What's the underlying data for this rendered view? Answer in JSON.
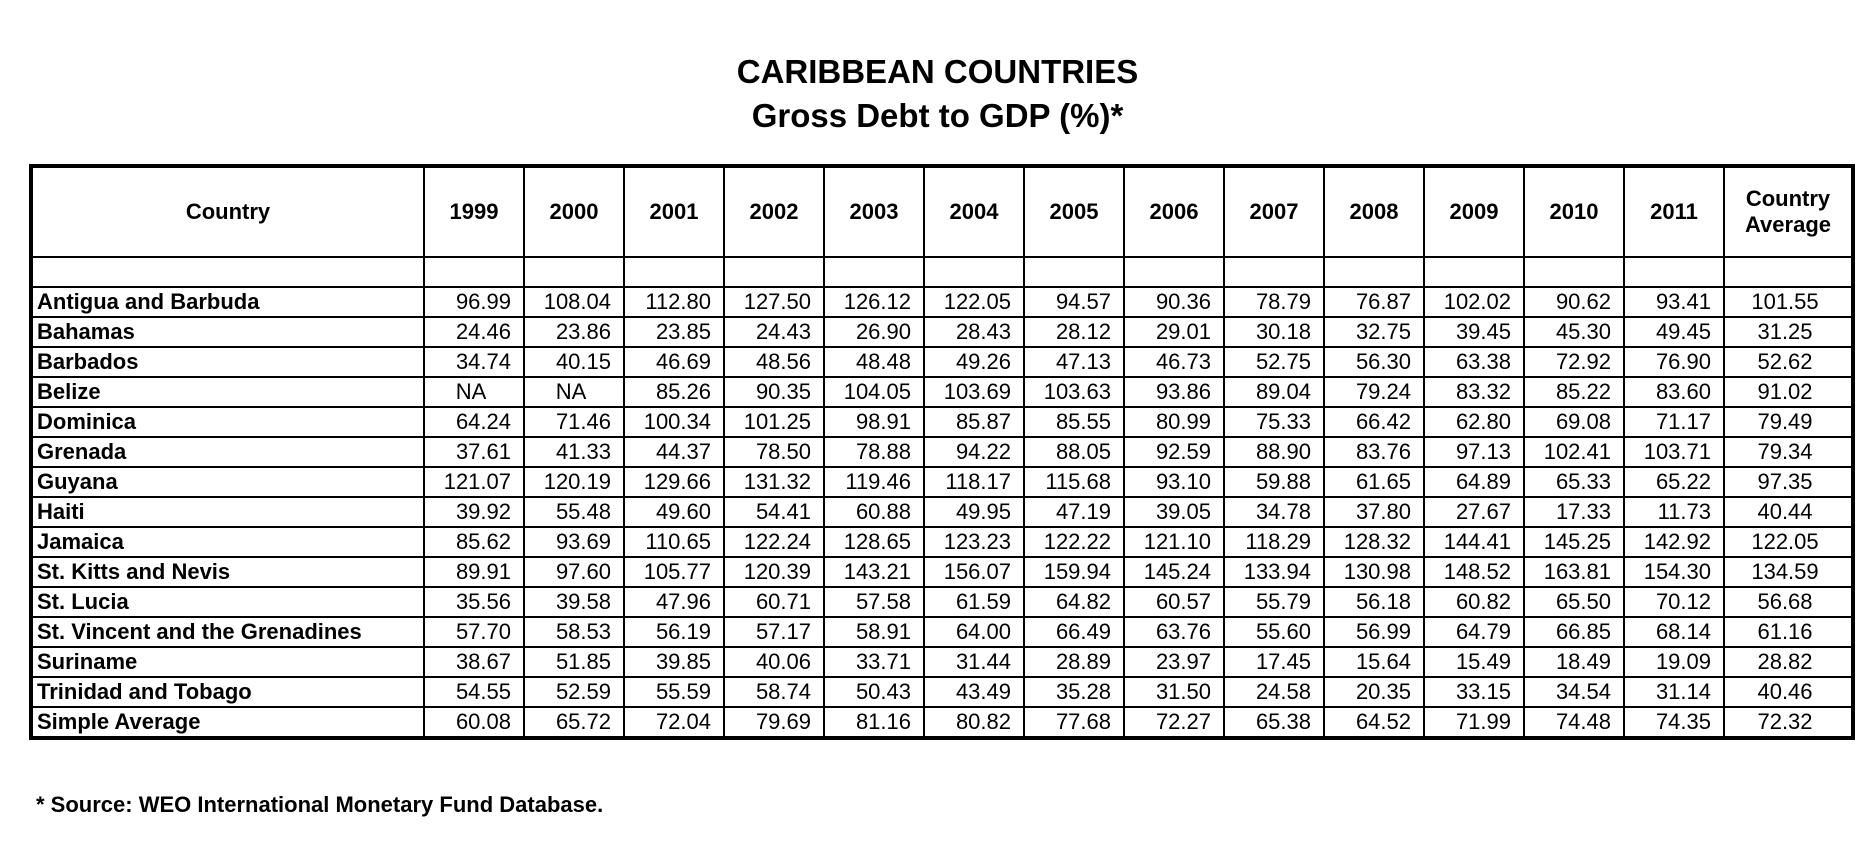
{
  "title": "CARIBBEAN COUNTRIES",
  "subtitle": "Gross Debt to GDP (%)*",
  "table": {
    "headers": [
      "Country",
      "1999",
      "2000",
      "2001",
      "2002",
      "2003",
      "2004",
      "2005",
      "2006",
      "2007",
      "2008",
      "2009",
      "2010",
      "2011",
      "Country Average"
    ],
    "rows": [
      [
        "Antigua and Barbuda",
        "96.99",
        "108.04",
        "112.80",
        "127.50",
        "126.12",
        "122.05",
        "94.57",
        "90.36",
        "78.79",
        "76.87",
        "102.02",
        "90.62",
        "93.41",
        "101.55"
      ],
      [
        "Bahamas",
        "24.46",
        "23.86",
        "23.85",
        "24.43",
        "26.90",
        "28.43",
        "28.12",
        "29.01",
        "30.18",
        "32.75",
        "39.45",
        "45.30",
        "49.45",
        "31.25"
      ],
      [
        "Barbados",
        "34.74",
        "40.15",
        "46.69",
        "48.56",
        "48.48",
        "49.26",
        "47.13",
        "46.73",
        "52.75",
        "56.30",
        "63.38",
        "72.92",
        "76.90",
        "52.62"
      ],
      [
        "Belize",
        "NA",
        "NA",
        "85.26",
        "90.35",
        "104.05",
        "103.69",
        "103.63",
        "93.86",
        "89.04",
        "79.24",
        "83.32",
        "85.22",
        "83.60",
        "91.02"
      ],
      [
        "Dominica",
        "64.24",
        "71.46",
        "100.34",
        "101.25",
        "98.91",
        "85.87",
        "85.55",
        "80.99",
        "75.33",
        "66.42",
        "62.80",
        "69.08",
        "71.17",
        "79.49"
      ],
      [
        "Grenada",
        "37.61",
        "41.33",
        "44.37",
        "78.50",
        "78.88",
        "94.22",
        "88.05",
        "92.59",
        "88.90",
        "83.76",
        "97.13",
        "102.41",
        "103.71",
        "79.34"
      ],
      [
        "Guyana",
        "121.07",
        "120.19",
        "129.66",
        "131.32",
        "119.46",
        "118.17",
        "115.68",
        "93.10",
        "59.88",
        "61.65",
        "64.89",
        "65.33",
        "65.22",
        "97.35"
      ],
      [
        "Haiti",
        "39.92",
        "55.48",
        "49.60",
        "54.41",
        "60.88",
        "49.95",
        "47.19",
        "39.05",
        "34.78",
        "37.80",
        "27.67",
        "17.33",
        "11.73",
        "40.44"
      ],
      [
        "Jamaica",
        "85.62",
        "93.69",
        "110.65",
        "122.24",
        "128.65",
        "123.23",
        "122.22",
        "121.10",
        "118.29",
        "128.32",
        "144.41",
        "145.25",
        "142.92",
        "122.05"
      ],
      [
        "St. Kitts and Nevis",
        "89.91",
        "97.60",
        "105.77",
        "120.39",
        "143.21",
        "156.07",
        "159.94",
        "145.24",
        "133.94",
        "130.98",
        "148.52",
        "163.81",
        "154.30",
        "134.59"
      ],
      [
        "St. Lucia",
        "35.56",
        "39.58",
        "47.96",
        "60.71",
        "57.58",
        "61.59",
        "64.82",
        "60.57",
        "55.79",
        "56.18",
        "60.82",
        "65.50",
        "70.12",
        "56.68"
      ],
      [
        "St. Vincent and the Grenadines",
        "57.70",
        "58.53",
        "56.19",
        "57.17",
        "58.91",
        "64.00",
        "66.49",
        "63.76",
        "55.60",
        "56.99",
        "64.79",
        "66.85",
        "68.14",
        "61.16"
      ],
      [
        "Suriname",
        "38.67",
        "51.85",
        "39.85",
        "40.06",
        "33.71",
        "31.44",
        "28.89",
        "23.97",
        "17.45",
        "15.64",
        "15.49",
        "18.49",
        "19.09",
        "28.82"
      ],
      [
        "Trinidad and Tobago",
        "54.55",
        "52.59",
        "55.59",
        "58.74",
        "50.43",
        "43.49",
        "35.28",
        "31.50",
        "24.58",
        "20.35",
        "33.15",
        "34.54",
        "31.14",
        "40.46"
      ],
      [
        "Simple Average",
        "60.08",
        "65.72",
        "72.04",
        "79.69",
        "81.16",
        "80.82",
        "77.68",
        "72.27",
        "65.38",
        "64.52",
        "71.99",
        "74.48",
        "74.35",
        "72.32"
      ]
    ]
  },
  "source": "* Source: WEO International Monetary Fund Database."
}
